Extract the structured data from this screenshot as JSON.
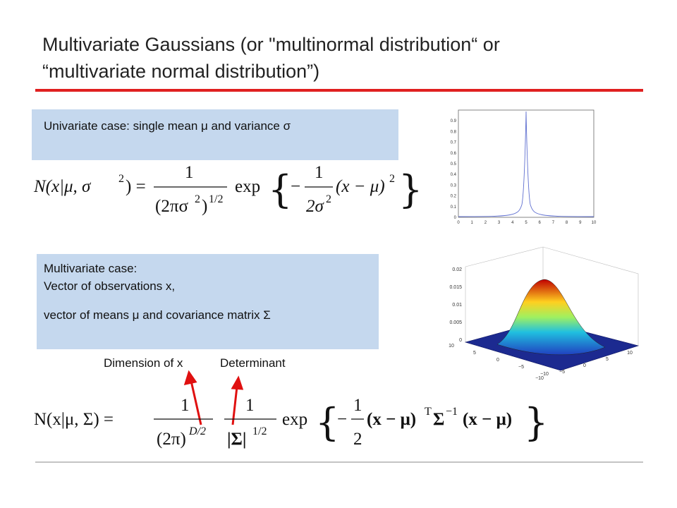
{
  "title": [
    "Multivariate Gaussians (or \"multinormal distribution“ or",
    "“multivariate normal distribution”)"
  ],
  "univariate": {
    "box_text": "Univariate case: single mean μ and variance σ",
    "formula": [
      "N(x|μ, σ",
      "2",
      ") =",
      "1",
      "(2πσ",
      "2",
      ")",
      "1/2",
      "exp",
      "{",
      "−",
      "1",
      "2σ",
      "2",
      "(x − μ)",
      "2",
      "}"
    ],
    "plot": {
      "xticks": [
        "0",
        "1",
        "2",
        "3",
        "4",
        "5",
        "6",
        "7",
        "8",
        "9",
        "10"
      ],
      "yticks": [
        "0",
        "0.1",
        "0.2",
        "0.3",
        "0.4",
        "0.5",
        "0.6",
        "0.7",
        "0.8",
        "0.9"
      ]
    }
  },
  "multivariate": {
    "box_lines": [
      "Multivariate case:",
      "Vector of observations x,",
      "vector of means μ and covariance matrix Σ"
    ],
    "annotations": [
      "Dimension of x",
      "Determinant"
    ],
    "formula": [
      "N(x|μ, Σ) =",
      "1",
      "(2π)",
      "D/2",
      "1",
      "|Σ|",
      "1/2",
      "exp",
      "{",
      "−",
      "1",
      "2",
      "(x − μ)",
      "T",
      "Σ",
      "−1",
      "(x − μ)",
      "}"
    ],
    "plot": {
      "zticks": [
        "0.02",
        "0.015",
        "0.01",
        "0.005",
        "0"
      ],
      "xticks": [
        "−10",
        "−5",
        "0",
        "5",
        "10"
      ],
      "yticks": [
        "10",
        "5",
        "0",
        "−5",
        "−10"
      ]
    }
  }
}
